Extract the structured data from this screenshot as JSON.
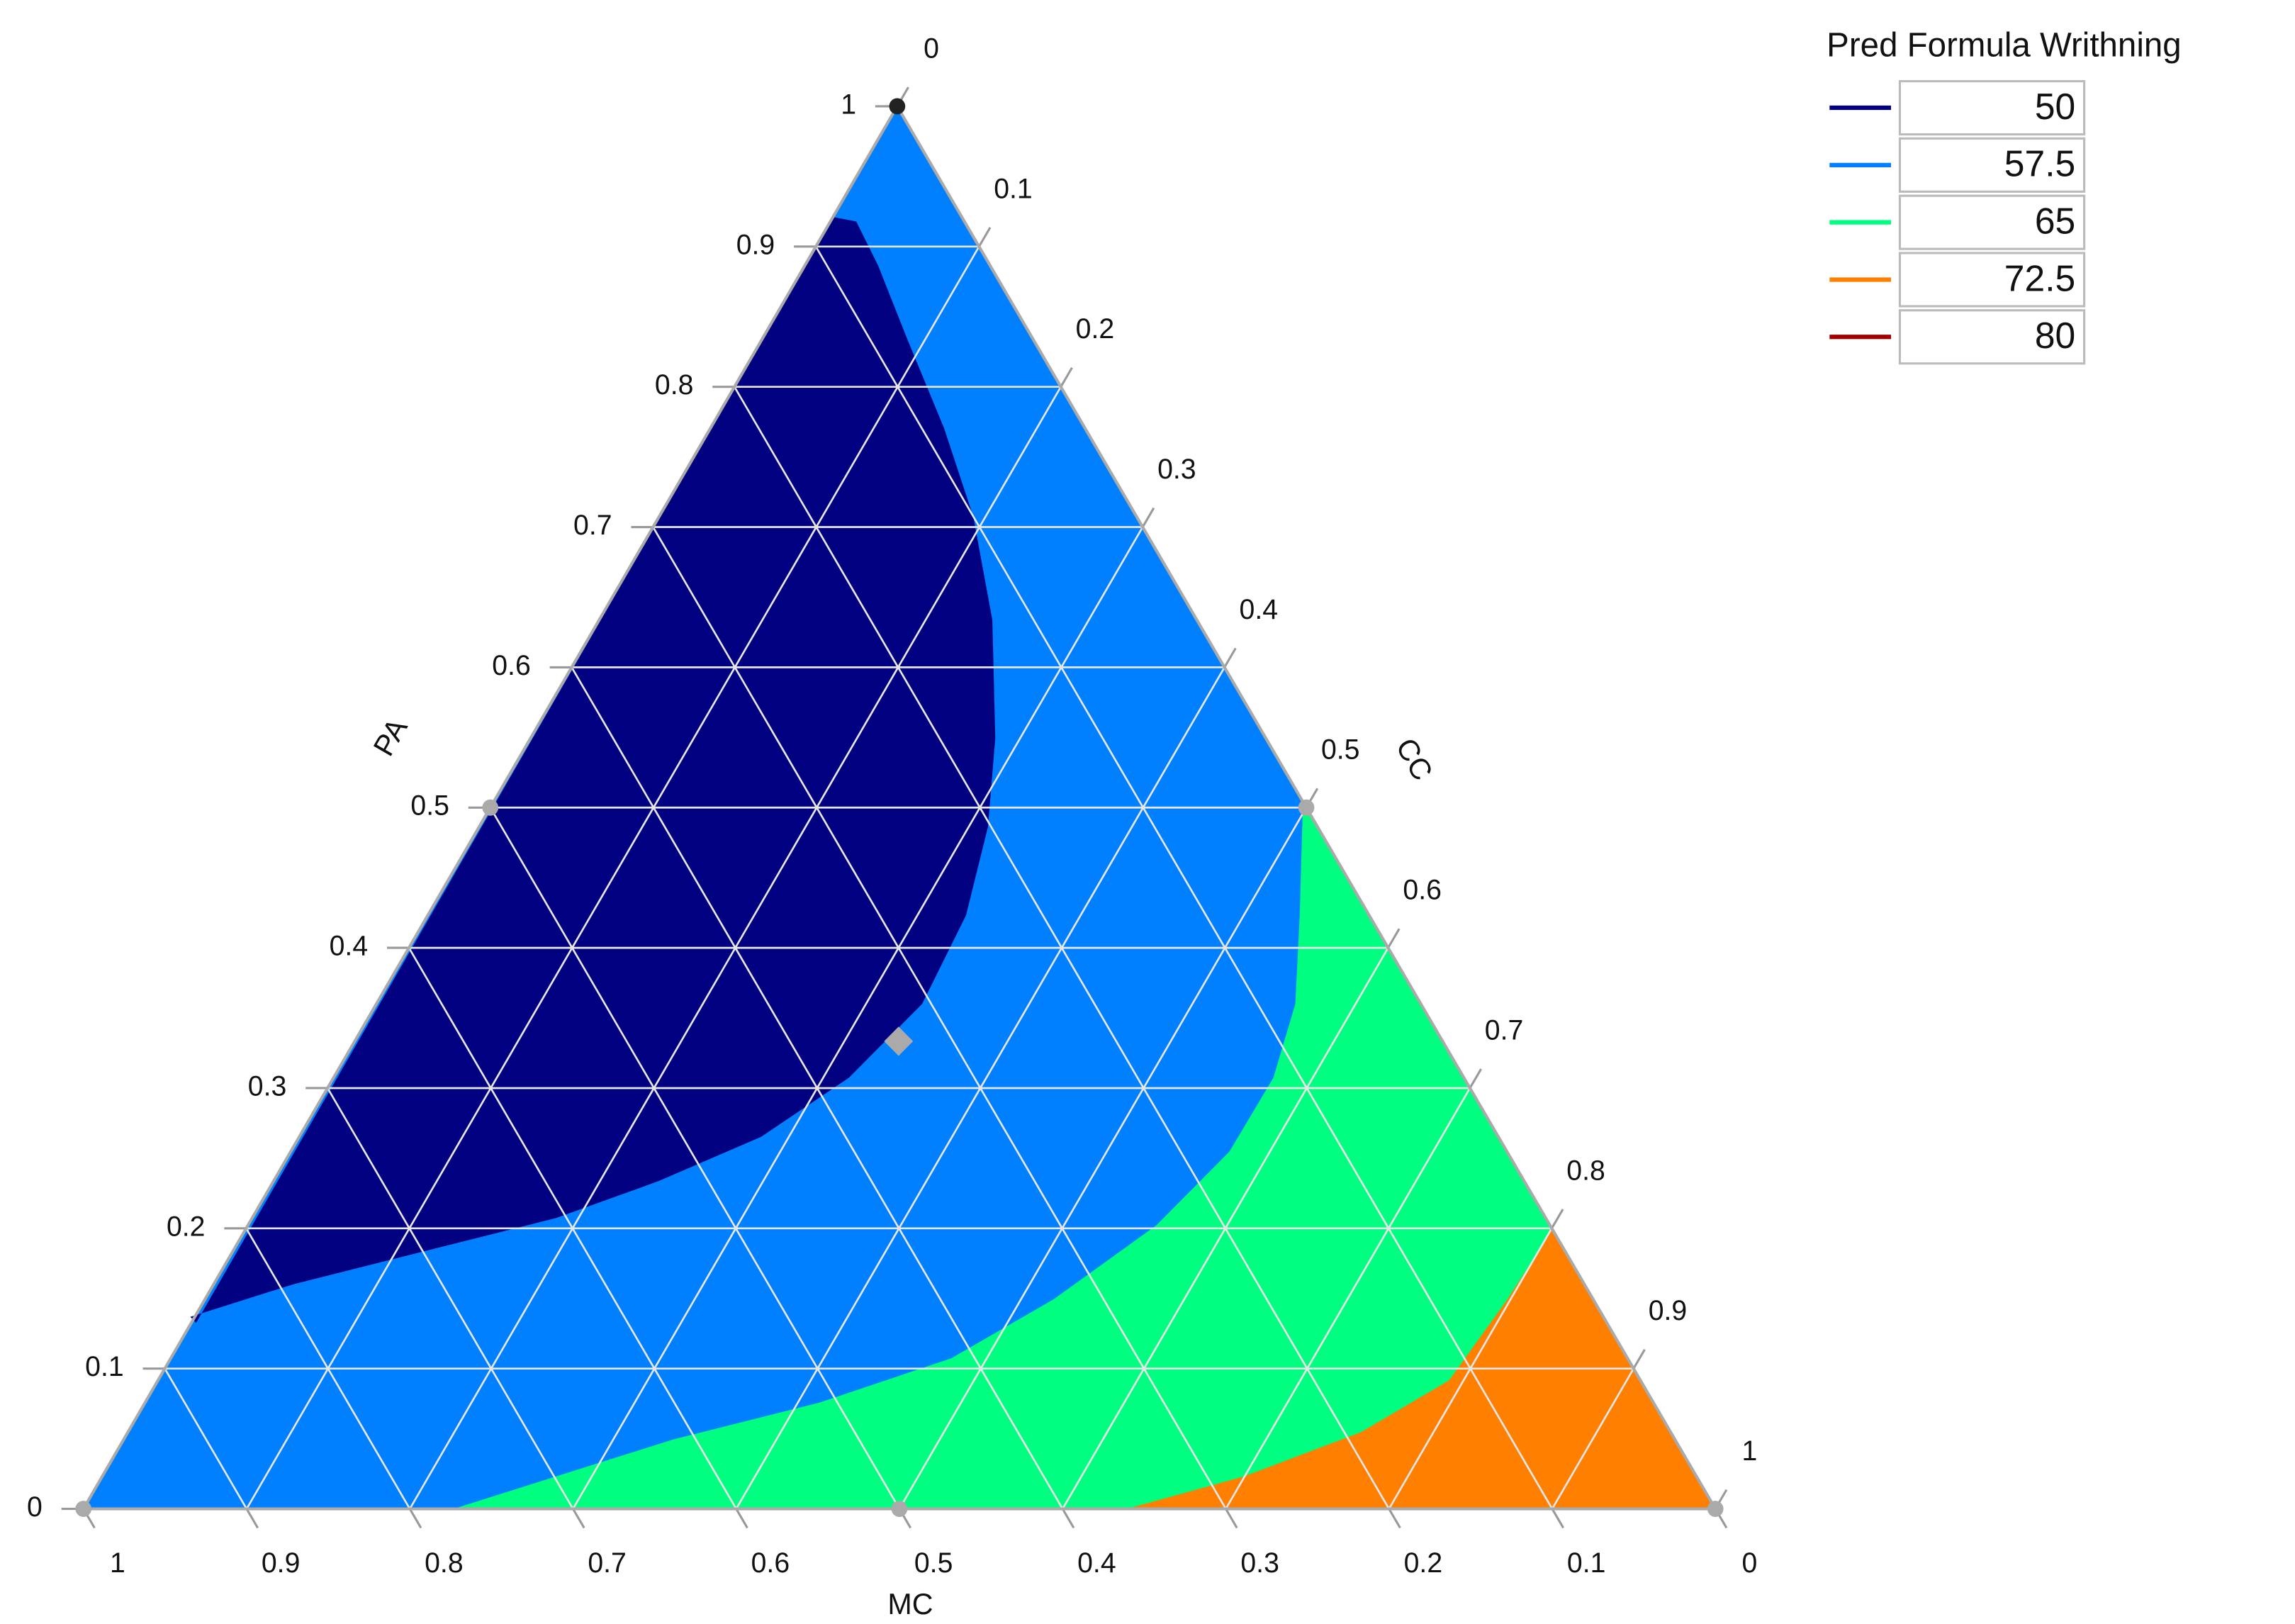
{
  "chart_data": {
    "type": "ternary",
    "axes": [
      {
        "title": "PA",
        "ticks": [
          0,
          0.1,
          0.2,
          0.3,
          0.4,
          0.5,
          0.6,
          0.7,
          0.8,
          0.9,
          1
        ]
      },
      {
        "title": "CC",
        "ticks": [
          0,
          0.1,
          0.2,
          0.3,
          0.4,
          0.5,
          0.6,
          0.7,
          0.8,
          0.9,
          1
        ]
      },
      {
        "title": "MC",
        "ticks": [
          1,
          0.9,
          0.8,
          0.7,
          0.6,
          0.5,
          0.4,
          0.3,
          0.2,
          0.1,
          0
        ]
      }
    ],
    "legend_title": "Pred Formula Writhning",
    "levels": [
      50,
      57.5,
      65,
      72.5,
      80
    ],
    "level_colors": [
      "#000080",
      "#0080ff",
      "#00ff80",
      "#ff8000",
      "#a00000"
    ],
    "points": {
      "PA": [
        1,
        0,
        0,
        0.5,
        0.5,
        0,
        0.3333
      ],
      "MC": [
        0,
        1,
        0,
        0.5,
        0,
        0.5,
        0.3333
      ],
      "CC": [
        0,
        0,
        1,
        0,
        0.5,
        0.5,
        0.3333
      ]
    },
    "grid": true
  }
}
